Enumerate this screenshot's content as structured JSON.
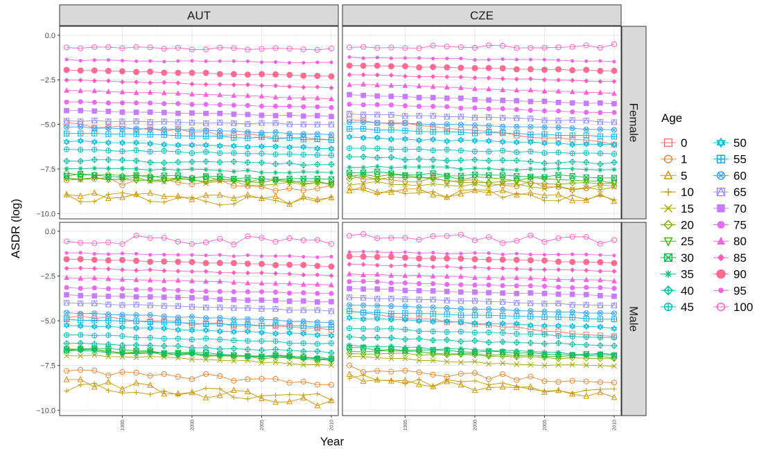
{
  "chart_data": {
    "type": "line",
    "facet_cols": [
      "AUT",
      "CZE"
    ],
    "facet_rows": [
      "Female",
      "Male"
    ],
    "xlabel": "Year",
    "ylabel": "ASDR (log)",
    "xlim": [
      1990.5,
      2010.5
    ],
    "ylim": [
      -10.3,
      0.5
    ],
    "x_ticks": [
      1995,
      2000,
      2005,
      2010
    ],
    "x_tick_labels": [
      "1995",
      "2000",
      "2005",
      "2010"
    ],
    "y_ticks": [
      0,
      -2.5,
      -5,
      -7.5,
      -10
    ],
    "y_tick_labels": [
      "0.0",
      "−2.5",
      "−5.0",
      "−7.5",
      "−10.0"
    ],
    "grid": true,
    "legend": {
      "title": "Age",
      "placement": "right",
      "entries": [
        "0",
        "1",
        "5",
        "10",
        "15",
        "20",
        "25",
        "30",
        "35",
        "40",
        "45",
        "50",
        "55",
        "60",
        "65",
        "70",
        "75",
        "80",
        "85",
        "90",
        "95",
        "100"
      ]
    },
    "ages": [
      0,
      1,
      5,
      10,
      15,
      20,
      25,
      30,
      35,
      40,
      45,
      50,
      55,
      60,
      65,
      70,
      75,
      80,
      85,
      90,
      95,
      100
    ],
    "series_colors": [
      "#F8766D",
      "#EA8331",
      "#D89000",
      "#C09B00",
      "#A3A500",
      "#7CAE00",
      "#39B600",
      "#00BB4E",
      "#00BF7D",
      "#00C1A3",
      "#00BFC4",
      "#00BAE0",
      "#00B0F6",
      "#35A2FF",
      "#9590FF",
      "#C77CFF",
      "#E76BF3",
      "#FA62DB",
      "#FF62BC",
      "#FF6C91",
      "#F564E3",
      "#FF61C3"
    ],
    "series_shapes": [
      "square-open",
      "circle-open",
      "triangle-open",
      "plus",
      "cross",
      "diamond-open",
      "triangle-down-open",
      "square-cross",
      "asterisk",
      "diamond-plus",
      "circle-plus",
      "star-of-david",
      "square-plus",
      "circle-cross",
      "triangle-square",
      "square",
      "circle",
      "triangle",
      "diamond",
      "circle-large",
      "circle-small",
      "circle-open"
    ],
    "years": [
      1991,
      1992,
      1993,
      1994,
      1995,
      1996,
      1997,
      1998,
      1999,
      2000,
      2001,
      2002,
      2003,
      2004,
      2005,
      2006,
      2007,
      2008,
      2009,
      2010
    ],
    "panels": [
      {
        "col": "AUT",
        "row": "Female",
        "series": [
          {
            "age": "0",
            "start": -5.0,
            "end": -5.85,
            "noise": 0.12
          },
          {
            "age": "1",
            "start": -8.05,
            "end": -8.6,
            "noise": 0.25
          },
          {
            "age": "5",
            "start": -8.9,
            "end": -9.4,
            "noise": 0.3
          },
          {
            "age": "10",
            "start": -9.05,
            "end": -9.35,
            "noise": 0.3
          },
          {
            "age": "15",
            "start": -8.0,
            "end": -8.4,
            "noise": 0.15
          },
          {
            "age": "20",
            "start": -7.85,
            "end": -8.25,
            "noise": 0.12
          },
          {
            "age": "25",
            "start": -7.95,
            "end": -8.3,
            "noise": 0.12
          },
          {
            "age": "30",
            "start": -7.85,
            "end": -8.05,
            "noise": 0.1
          },
          {
            "age": "35",
            "start": -7.45,
            "end": -7.7,
            "noise": 0.07
          },
          {
            "age": "40",
            "start": -7.0,
            "end": -7.25,
            "noise": 0.07
          },
          {
            "age": "45",
            "start": -6.4,
            "end": -6.75,
            "noise": 0.05
          },
          {
            "age": "50",
            "start": -5.95,
            "end": -6.35,
            "noise": 0.05
          },
          {
            "age": "55",
            "start": -5.5,
            "end": -5.85,
            "noise": 0.05
          },
          {
            "age": "60",
            "start": -5.15,
            "end": -5.55,
            "noise": 0.04
          },
          {
            "age": "65",
            "start": -4.8,
            "end": -5.0,
            "noise": 0.04
          },
          {
            "age": "70",
            "start": -4.22,
            "end": -4.55,
            "noise": 0.03
          },
          {
            "age": "75",
            "start": -3.72,
            "end": -4.05,
            "noise": 0.03
          },
          {
            "age": "80",
            "start": -3.08,
            "end": -3.55,
            "noise": 0.03
          },
          {
            "age": "85",
            "start": -2.5,
            "end": -2.95,
            "noise": 0.03
          },
          {
            "age": "90",
            "start": -1.95,
            "end": -2.3,
            "noise": 0.03
          },
          {
            "age": "95",
            "start": -1.38,
            "end": -1.55,
            "noise": 0.04
          },
          {
            "age": "100",
            "start": -0.7,
            "end": -0.75,
            "noise": 0.08
          }
        ]
      },
      {
        "col": "CZE",
        "row": "Female",
        "series": [
          {
            "age": "0",
            "start": -4.7,
            "end": -6.1,
            "noise": 0.08
          },
          {
            "age": "1",
            "start": -7.95,
            "end": -8.6,
            "noise": 0.22
          },
          {
            "age": "5",
            "start": -8.6,
            "end": -9.2,
            "noise": 0.28
          },
          {
            "age": "10",
            "start": -8.65,
            "end": -9.2,
            "noise": 0.28
          },
          {
            "age": "15",
            "start": -8.3,
            "end": -8.55,
            "noise": 0.15
          },
          {
            "age": "20",
            "start": -8.0,
            "end": -8.35,
            "noise": 0.12
          },
          {
            "age": "25",
            "start": -7.85,
            "end": -8.2,
            "noise": 0.12
          },
          {
            "age": "30",
            "start": -7.7,
            "end": -7.95,
            "noise": 0.1
          },
          {
            "age": "35",
            "start": -7.4,
            "end": -7.55,
            "noise": 0.07
          },
          {
            "age": "40",
            "start": -6.85,
            "end": -7.2,
            "noise": 0.07
          },
          {
            "age": "45",
            "start": -6.3,
            "end": -6.65,
            "noise": 0.05
          },
          {
            "age": "50",
            "start": -5.75,
            "end": -6.15,
            "noise": 0.05
          },
          {
            "age": "55",
            "start": -5.25,
            "end": -5.7,
            "noise": 0.04
          },
          {
            "age": "60",
            "start": -4.85,
            "end": -5.3,
            "noise": 0.04
          },
          {
            "age": "65",
            "start": -4.4,
            "end": -4.85,
            "noise": 0.04
          },
          {
            "age": "70",
            "start": -3.35,
            "end": -3.85,
            "noise": 0.03
          },
          {
            "age": "75",
            "start": -3.85,
            "end": -4.35,
            "noise": 0.03
          },
          {
            "age": "80",
            "start": -2.75,
            "end": -3.25,
            "noise": 0.03
          },
          {
            "age": "85",
            "start": -2.2,
            "end": -2.6,
            "noise": 0.03
          },
          {
            "age": "90",
            "start": -1.7,
            "end": -2.0,
            "noise": 0.03
          },
          {
            "age": "95",
            "start": -1.25,
            "end": -1.45,
            "noise": 0.04
          },
          {
            "age": "100",
            "start": -0.65,
            "end": -0.6,
            "noise": 0.1
          }
        ]
      },
      {
        "col": "AUT",
        "row": "Male",
        "series": [
          {
            "age": "0",
            "start": -4.75,
            "end": -5.55,
            "noise": 0.1
          },
          {
            "age": "1",
            "start": -7.75,
            "end": -8.5,
            "noise": 0.2
          },
          {
            "age": "5",
            "start": -8.4,
            "end": -9.6,
            "noise": 0.28
          },
          {
            "age": "10",
            "start": -8.7,
            "end": -9.3,
            "noise": 0.28
          },
          {
            "age": "15",
            "start": -6.9,
            "end": -7.45,
            "noise": 0.08
          },
          {
            "age": "20",
            "start": -6.6,
            "end": -7.25,
            "noise": 0.1
          },
          {
            "age": "25",
            "start": -6.65,
            "end": -7.15,
            "noise": 0.1
          },
          {
            "age": "30",
            "start": -6.55,
            "end": -7.1,
            "noise": 0.1
          },
          {
            "age": "35",
            "start": -6.7,
            "end": -7.1,
            "noise": 0.07
          },
          {
            "age": "40",
            "start": -6.25,
            "end": -6.75,
            "noise": 0.05
          },
          {
            "age": "45",
            "start": -5.75,
            "end": -6.3,
            "noise": 0.05
          },
          {
            "age": "50",
            "start": -5.25,
            "end": -5.8,
            "noise": 0.04
          },
          {
            "age": "55",
            "start": -4.95,
            "end": -5.35,
            "noise": 0.04
          },
          {
            "age": "60",
            "start": -4.55,
            "end": -5.1,
            "noise": 0.04
          },
          {
            "age": "65",
            "start": -4.0,
            "end": -4.45,
            "noise": 0.03
          },
          {
            "age": "70",
            "start": -3.55,
            "end": -3.95,
            "noise": 0.03
          },
          {
            "age": "75",
            "start": -3.15,
            "end": -3.5,
            "noise": 0.03
          },
          {
            "age": "80",
            "start": -2.6,
            "end": -3.0,
            "noise": 0.03
          },
          {
            "age": "85",
            "start": -2.05,
            "end": -2.45,
            "noise": 0.03
          },
          {
            "age": "90",
            "start": -1.55,
            "end": -1.95,
            "noise": 0.03
          },
          {
            "age": "95",
            "start": -1.2,
            "end": -1.45,
            "noise": 0.04
          },
          {
            "age": "100",
            "start": -0.45,
            "end": -0.55,
            "noise": 0.25
          }
        ]
      },
      {
        "col": "CZE",
        "row": "Male",
        "series": [
          {
            "age": "0",
            "start": -4.5,
            "end": -5.9,
            "noise": 0.07
          },
          {
            "age": "1",
            "start": -7.65,
            "end": -8.5,
            "noise": 0.18
          },
          {
            "age": "5",
            "start": -8.1,
            "end": -9.3,
            "noise": 0.25
          },
          {
            "age": "10",
            "start": -8.2,
            "end": -9.0,
            "noise": 0.22
          },
          {
            "age": "15",
            "start": -7.05,
            "end": -7.6,
            "noise": 0.07
          },
          {
            "age": "20",
            "start": -6.8,
            "end": -7.15,
            "noise": 0.07
          },
          {
            "age": "25",
            "start": -6.65,
            "end": -7.05,
            "noise": 0.08
          },
          {
            "age": "30",
            "start": -6.55,
            "end": -6.95,
            "noise": 0.08
          },
          {
            "age": "35",
            "start": -6.4,
            "end": -6.9,
            "noise": 0.06
          },
          {
            "age": "40",
            "start": -5.9,
            "end": -6.4,
            "noise": 0.05
          },
          {
            "age": "45",
            "start": -5.4,
            "end": -5.95,
            "noise": 0.04
          },
          {
            "age": "50",
            "start": -4.85,
            "end": -5.4,
            "noise": 0.04
          },
          {
            "age": "55",
            "start": -4.5,
            "end": -4.9,
            "noise": 0.04
          },
          {
            "age": "60",
            "start": -4.1,
            "end": -4.6,
            "noise": 0.03
          },
          {
            "age": "65",
            "start": -3.7,
            "end": -4.15,
            "noise": 0.03
          },
          {
            "age": "70",
            "start": -3.2,
            "end": -3.6,
            "noise": 0.03
          },
          {
            "age": "75",
            "start": -2.8,
            "end": -3.2,
            "noise": 0.03
          },
          {
            "age": "80",
            "start": -2.4,
            "end": -2.75,
            "noise": 0.03
          },
          {
            "age": "85",
            "start": -1.85,
            "end": -2.25,
            "noise": 0.03
          },
          {
            "age": "90",
            "start": -1.4,
            "end": -1.75,
            "noise": 0.03
          },
          {
            "age": "95",
            "start": -1.15,
            "end": -1.35,
            "noise": 0.04
          },
          {
            "age": "100",
            "start": -0.35,
            "end": -0.45,
            "noise": 0.25
          }
        ]
      }
    ]
  }
}
